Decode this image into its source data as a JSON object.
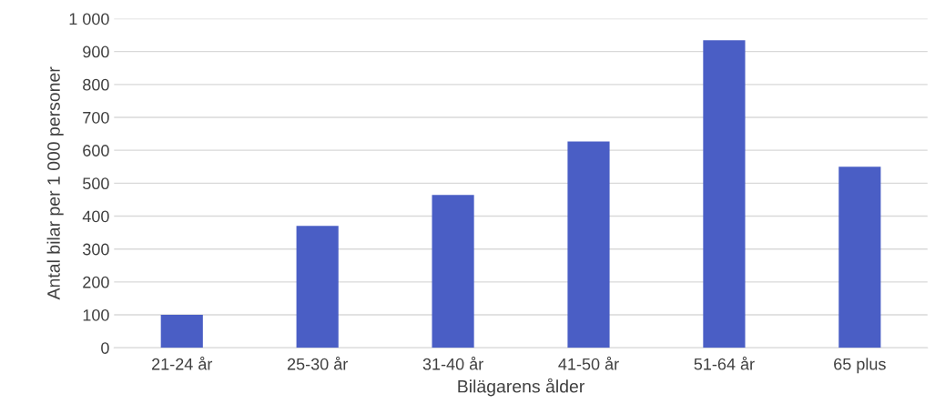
{
  "chart_data": {
    "type": "bar",
    "xlabel": "Bilägarens ålder",
    "ylabel": "Antal bilar per 1 000 personer",
    "categories": [
      "21-24 år",
      "25-30 år",
      "31-40 år",
      "41-50 år",
      "51-64 år",
      "65 plus"
    ],
    "values": [
      100,
      370,
      464,
      627,
      934,
      550
    ],
    "color": "#4a5ec5",
    "ylim": [
      0,
      1000
    ],
    "yticks": [
      0,
      100,
      200,
      300,
      400,
      500,
      600,
      700,
      800,
      900,
      {
        "value": 1000,
        "label": "1 000"
      }
    ],
    "grid": "y"
  }
}
